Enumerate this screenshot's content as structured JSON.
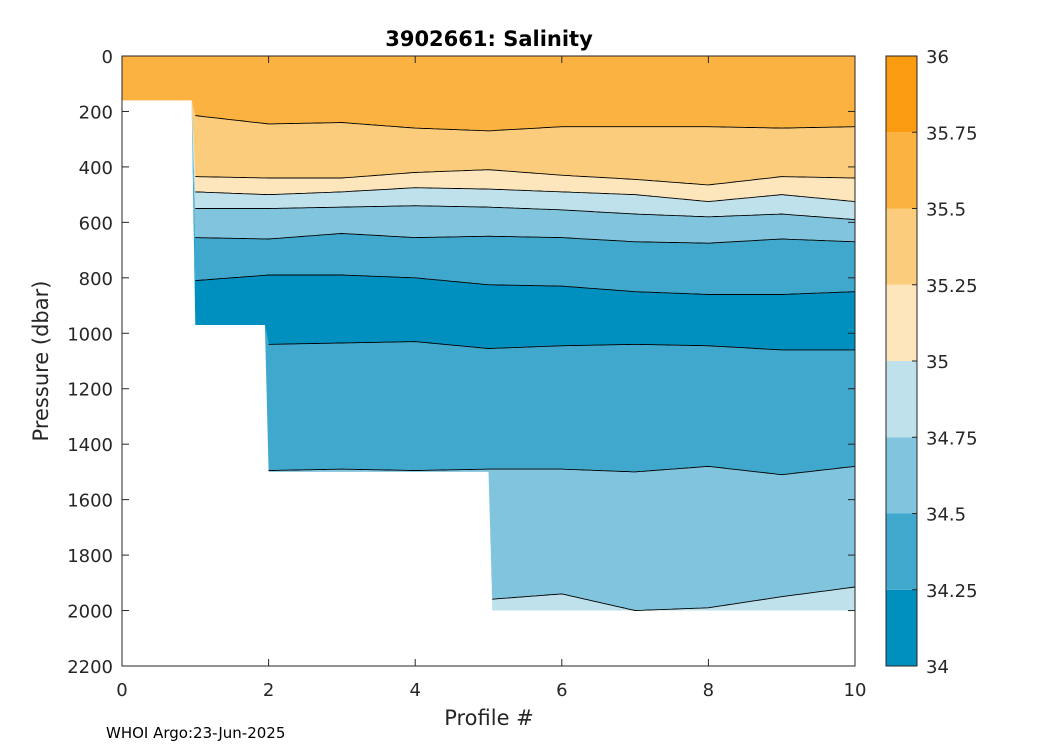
{
  "chart_data": {
    "type": "contourf",
    "title": "3902661:  Salinity",
    "xlabel": "Profile #",
    "ylabel": "Pressure (dbar)",
    "xlim": [
      0,
      10
    ],
    "ylim": [
      2200,
      0
    ],
    "y_reversed": true,
    "xticks": [
      0,
      2,
      4,
      6,
      8,
      10
    ],
    "yticks": [
      0,
      200,
      400,
      600,
      800,
      1000,
      1200,
      1400,
      1600,
      1800,
      2000,
      2200
    ],
    "colorbar": {
      "range": [
        34,
        36
      ],
      "levels": [
        34,
        34.25,
        34.5,
        34.75,
        35,
        35.25,
        35.5,
        35.75,
        36
      ],
      "tick_labels": [
        "34",
        "34.25",
        "34.5",
        "34.75",
        "35",
        "35.25",
        "35.5",
        "35.75",
        "36"
      ],
      "colors": [
        "#0090bf",
        "#40a8cd",
        "#80c4dd",
        "#bfe1eb",
        "#fde6bc",
        "#fbcc7c",
        "#fbb241",
        "#fb9b10"
      ]
    },
    "profile_max_pressure": [
      {
        "x_from": 0,
        "x_to": 1,
        "pressure": 160
      },
      {
        "x_from": 1,
        "x_to": 2,
        "pressure": 970
      },
      {
        "x_from": 2,
        "x_to": 5,
        "pressure": 1500
      },
      {
        "x_from": 5,
        "x_to": 10,
        "pressure": 2000
      }
    ],
    "contours": {
      "x": [
        0,
        1,
        2,
        3,
        4,
        5,
        6,
        7,
        8,
        9,
        10
      ],
      "boundaries": [
        {
          "value": 35.5,
          "pressure": [
            null,
            215,
            245,
            240,
            260,
            270,
            255,
            255,
            255,
            260,
            255
          ]
        },
        {
          "value": 35.25,
          "pressure": [
            null,
            435,
            440,
            440,
            420,
            410,
            430,
            445,
            465,
            435,
            440
          ]
        },
        {
          "value": 35,
          "pressure": [
            null,
            490,
            500,
            490,
            475,
            480,
            490,
            500,
            525,
            500,
            525
          ]
        },
        {
          "value": 34.75,
          "pressure": [
            null,
            550,
            550,
            545,
            540,
            545,
            555,
            570,
            580,
            570,
            590
          ]
        },
        {
          "value": 34.5,
          "pressure": [
            null,
            655,
            660,
            640,
            655,
            650,
            655,
            670,
            675,
            660,
            670
          ]
        },
        {
          "value": 34.25,
          "pressure": [
            null,
            810,
            790,
            790,
            800,
            825,
            830,
            850,
            860,
            860,
            850
          ]
        },
        {
          "value": 34.25,
          "pressure": [
            null,
            null,
            1040,
            1035,
            1030,
            1055,
            1045,
            1040,
            1045,
            1060,
            1060
          ]
        },
        {
          "value": 34.5,
          "pressure": [
            null,
            null,
            1495,
            1490,
            1495,
            1490,
            1490,
            1500,
            1480,
            1510,
            1480
          ]
        },
        {
          "value": 34.75,
          "pressure": [
            null,
            null,
            null,
            null,
            null,
            1960,
            1940,
            2000,
            1990,
            1950,
            1915
          ]
        }
      ]
    }
  },
  "footer": "WHOI Argo:23-Jun-2025"
}
